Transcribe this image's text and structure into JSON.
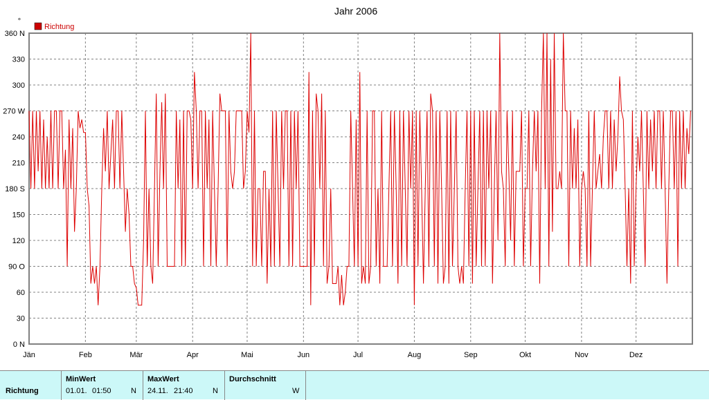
{
  "chart_data": {
    "type": "line",
    "title": "Jahr 2006",
    "unit_label": "°",
    "series": [
      {
        "name": "Richtung",
        "color": "#dd0000"
      }
    ],
    "ylim": [
      0,
      360
    ],
    "yticks": [
      {
        "value": 360,
        "label": "360 N"
      },
      {
        "value": 330,
        "label": "330"
      },
      {
        "value": 300,
        "label": "300"
      },
      {
        "value": 270,
        "label": "270 W"
      },
      {
        "value": 240,
        "label": "240"
      },
      {
        "value": 210,
        "label": "210"
      },
      {
        "value": 180,
        "label": "180 S"
      },
      {
        "value": 150,
        "label": "150"
      },
      {
        "value": 120,
        "label": "120"
      },
      {
        "value": 90,
        "label": "90  O"
      },
      {
        "value": 60,
        "label": "60"
      },
      {
        "value": 30,
        "label": "30"
      },
      {
        "value": 0,
        "label": "0   N"
      }
    ],
    "xlim": [
      0,
      365
    ],
    "xticks": [
      {
        "day": 0,
        "label": "Jän"
      },
      {
        "day": 31,
        "label": "Feb"
      },
      {
        "day": 59,
        "label": "Mär"
      },
      {
        "day": 90,
        "label": "Apr"
      },
      {
        "day": 120,
        "label": "Mai"
      },
      {
        "day": 151,
        "label": "Jun"
      },
      {
        "day": 181,
        "label": "Jul"
      },
      {
        "day": 212,
        "label": "Aug"
      },
      {
        "day": 243,
        "label": "Sep"
      },
      {
        "day": 273,
        "label": "Okt"
      },
      {
        "day": 304,
        "label": "Nov"
      },
      {
        "day": 334,
        "label": "Dez"
      }
    ],
    "grid": true,
    "legend_position": "top-left",
    "data_x_unit": "day of year",
    "data_y_unit": "degrees",
    "data": [
      [
        0,
        270
      ],
      [
        1,
        180
      ],
      [
        2,
        270
      ],
      [
        3,
        180
      ],
      [
        4,
        270
      ],
      [
        5,
        200
      ],
      [
        6,
        270
      ],
      [
        7,
        180
      ],
      [
        8,
        260
      ],
      [
        9,
        180
      ],
      [
        10,
        240
      ],
      [
        11,
        180
      ],
      [
        12,
        270
      ],
      [
        13,
        180
      ],
      [
        14,
        270
      ],
      [
        15,
        270
      ],
      [
        16,
        180
      ],
      [
        17,
        270
      ],
      [
        18,
        270
      ],
      [
        19,
        180
      ],
      [
        20,
        225
      ],
      [
        21,
        90
      ],
      [
        22,
        260
      ],
      [
        23,
        180
      ],
      [
        24,
        250
      ],
      [
        25,
        130
      ],
      [
        26,
        180
      ],
      [
        27,
        270
      ],
      [
        28,
        250
      ],
      [
        29,
        260
      ],
      [
        30,
        245
      ],
      [
        31,
        245
      ],
      [
        32,
        180
      ],
      [
        33,
        160
      ],
      [
        34,
        70
      ],
      [
        35,
        90
      ],
      [
        36,
        70
      ],
      [
        37,
        90
      ],
      [
        38,
        45
      ],
      [
        39,
        90
      ],
      [
        40,
        180
      ],
      [
        41,
        250
      ],
      [
        42,
        200
      ],
      [
        43,
        270
      ],
      [
        44,
        180
      ],
      [
        45,
        220
      ],
      [
        46,
        260
      ],
      [
        47,
        180
      ],
      [
        48,
        270
      ],
      [
        49,
        270
      ],
      [
        50,
        180
      ],
      [
        51,
        270
      ],
      [
        52,
        200
      ],
      [
        53,
        130
      ],
      [
        54,
        180
      ],
      [
        55,
        150
      ],
      [
        56,
        90
      ],
      [
        57,
        90
      ],
      [
        58,
        70
      ],
      [
        59,
        65
      ],
      [
        60,
        45
      ],
      [
        61,
        45
      ],
      [
        62,
        45
      ],
      [
        63,
        120
      ],
      [
        64,
        270
      ],
      [
        65,
        90
      ],
      [
        66,
        180
      ],
      [
        67,
        90
      ],
      [
        68,
        70
      ],
      [
        69,
        180
      ],
      [
        70,
        290
      ],
      [
        71,
        90
      ],
      [
        72,
        200
      ],
      [
        73,
        280
      ],
      [
        74,
        180
      ],
      [
        75,
        290
      ],
      [
        76,
        90
      ],
      [
        77,
        90
      ],
      [
        78,
        90
      ],
      [
        79,
        90
      ],
      [
        80,
        90
      ],
      [
        81,
        270
      ],
      [
        82,
        180
      ],
      [
        83,
        260
      ],
      [
        84,
        90
      ],
      [
        85,
        270
      ],
      [
        86,
        90
      ],
      [
        87,
        270
      ],
      [
        88,
        270
      ],
      [
        89,
        260
      ],
      [
        90,
        180
      ],
      [
        91,
        315
      ],
      [
        92,
        270
      ],
      [
        93,
        180
      ],
      [
        94,
        270
      ],
      [
        95,
        270
      ],
      [
        96,
        90
      ],
      [
        97,
        270
      ],
      [
        98,
        180
      ],
      [
        99,
        260
      ],
      [
        100,
        90
      ],
      [
        101,
        270
      ],
      [
        102,
        180
      ],
      [
        103,
        90
      ],
      [
        104,
        180
      ],
      [
        105,
        290
      ],
      [
        106,
        270
      ],
      [
        107,
        270
      ],
      [
        108,
        270
      ],
      [
        109,
        90
      ],
      [
        110,
        270
      ],
      [
        111,
        200
      ],
      [
        112,
        180
      ],
      [
        113,
        200
      ],
      [
        114,
        270
      ],
      [
        115,
        270
      ],
      [
        116,
        270
      ],
      [
        117,
        270
      ],
      [
        118,
        180
      ],
      [
        119,
        200
      ],
      [
        120,
        270
      ],
      [
        121,
        245
      ],
      [
        122,
        360
      ],
      [
        123,
        90
      ],
      [
        124,
        270
      ],
      [
        125,
        90
      ],
      [
        126,
        180
      ],
      [
        127,
        180
      ],
      [
        128,
        90
      ],
      [
        129,
        200
      ],
      [
        130,
        200
      ],
      [
        131,
        70
      ],
      [
        132,
        180
      ],
      [
        133,
        90
      ],
      [
        134,
        270
      ],
      [
        135,
        90
      ],
      [
        136,
        270
      ],
      [
        137,
        180
      ],
      [
        138,
        90
      ],
      [
        139,
        270
      ],
      [
        140,
        180
      ],
      [
        141,
        270
      ],
      [
        142,
        270
      ],
      [
        143,
        90
      ],
      [
        144,
        270
      ],
      [
        145,
        90
      ],
      [
        146,
        270
      ],
      [
        147,
        180
      ],
      [
        148,
        270
      ],
      [
        149,
        90
      ],
      [
        150,
        90
      ],
      [
        151,
        90
      ],
      [
        152,
        90
      ],
      [
        153,
        90
      ],
      [
        154,
        315
      ],
      [
        155,
        45
      ],
      [
        156,
        270
      ],
      [
        157,
        90
      ],
      [
        158,
        290
      ],
      [
        159,
        270
      ],
      [
        160,
        180
      ],
      [
        161,
        290
      ],
      [
        162,
        90
      ],
      [
        163,
        270
      ],
      [
        164,
        70
      ],
      [
        165,
        90
      ],
      [
        166,
        180
      ],
      [
        167,
        70
      ],
      [
        168,
        70
      ],
      [
        169,
        70
      ],
      [
        170,
        90
      ],
      [
        171,
        45
      ],
      [
        172,
        80
      ],
      [
        173,
        45
      ],
      [
        174,
        60
      ],
      [
        175,
        90
      ],
      [
        176,
        90
      ],
      [
        177,
        270
      ],
      [
        178,
        180
      ],
      [
        179,
        90
      ],
      [
        180,
        260
      ],
      [
        181,
        90
      ],
      [
        182,
        315
      ],
      [
        183,
        70
      ],
      [
        184,
        90
      ],
      [
        185,
        70
      ],
      [
        186,
        270
      ],
      [
        187,
        70
      ],
      [
        188,
        90
      ],
      [
        189,
        270
      ],
      [
        190,
        270
      ],
      [
        191,
        90
      ],
      [
        192,
        180
      ],
      [
        193,
        70
      ],
      [
        194,
        270
      ],
      [
        195,
        90
      ],
      [
        196,
        90
      ],
      [
        197,
        90
      ],
      [
        198,
        180
      ],
      [
        199,
        270
      ],
      [
        200,
        90
      ],
      [
        201,
        270
      ],
      [
        202,
        180
      ],
      [
        203,
        70
      ],
      [
        204,
        270
      ],
      [
        205,
        90
      ],
      [
        206,
        270
      ],
      [
        207,
        180
      ],
      [
        208,
        90
      ],
      [
        209,
        270
      ],
      [
        210,
        180
      ],
      [
        211,
        270
      ],
      [
        212,
        45
      ],
      [
        213,
        270
      ],
      [
        214,
        90
      ],
      [
        215,
        270
      ],
      [
        216,
        180
      ],
      [
        217,
        70
      ],
      [
        218,
        180
      ],
      [
        219,
        270
      ],
      [
        220,
        90
      ],
      [
        221,
        290
      ],
      [
        222,
        270
      ],
      [
        223,
        90
      ],
      [
        224,
        270
      ],
      [
        225,
        70
      ],
      [
        226,
        270
      ],
      [
        227,
        180
      ],
      [
        228,
        70
      ],
      [
        229,
        90
      ],
      [
        230,
        270
      ],
      [
        231,
        70
      ],
      [
        232,
        270
      ],
      [
        233,
        90
      ],
      [
        234,
        180
      ],
      [
        235,
        270
      ],
      [
        236,
        90
      ],
      [
        237,
        70
      ],
      [
        238,
        90
      ],
      [
        239,
        70
      ],
      [
        240,
        180
      ],
      [
        241,
        270
      ],
      [
        242,
        90
      ],
      [
        243,
        270
      ],
      [
        244,
        70
      ],
      [
        245,
        270
      ],
      [
        246,
        90
      ],
      [
        247,
        180
      ],
      [
        248,
        270
      ],
      [
        249,
        90
      ],
      [
        250,
        270
      ],
      [
        251,
        90
      ],
      [
        252,
        270
      ],
      [
        253,
        180
      ],
      [
        254,
        270
      ],
      [
        255,
        70
      ],
      [
        256,
        180
      ],
      [
        257,
        270
      ],
      [
        258,
        120
      ],
      [
        259,
        360
      ],
      [
        260,
        200
      ],
      [
        261,
        180
      ],
      [
        262,
        90
      ],
      [
        263,
        270
      ],
      [
        264,
        200
      ],
      [
        265,
        120
      ],
      [
        266,
        270
      ],
      [
        267,
        90
      ],
      [
        268,
        200
      ],
      [
        269,
        200
      ],
      [
        270,
        200
      ],
      [
        271,
        270
      ],
      [
        272,
        90
      ],
      [
        273,
        180
      ],
      [
        274,
        180
      ],
      [
        275,
        270
      ],
      [
        276,
        90
      ],
      [
        277,
        200
      ],
      [
        278,
        270
      ],
      [
        279,
        200
      ],
      [
        280,
        270
      ],
      [
        281,
        70
      ],
      [
        282,
        270
      ],
      [
        283,
        360
      ],
      [
        284,
        180
      ],
      [
        285,
        360
      ],
      [
        286,
        90
      ],
      [
        287,
        330
      ],
      [
        288,
        130
      ],
      [
        289,
        360
      ],
      [
        290,
        180
      ],
      [
        291,
        180
      ],
      [
        292,
        200
      ],
      [
        293,
        180
      ],
      [
        294,
        360
      ],
      [
        295,
        270
      ],
      [
        296,
        270
      ],
      [
        297,
        90
      ],
      [
        298,
        270
      ],
      [
        299,
        180
      ],
      [
        300,
        250
      ],
      [
        301,
        180
      ],
      [
        302,
        260
      ],
      [
        303,
        90
      ],
      [
        304,
        180
      ],
      [
        305,
        200
      ],
      [
        306,
        180
      ],
      [
        307,
        90
      ],
      [
        308,
        270
      ],
      [
        309,
        90
      ],
      [
        310,
        180
      ],
      [
        311,
        270
      ],
      [
        312,
        180
      ],
      [
        313,
        200
      ],
      [
        314,
        220
      ],
      [
        315,
        180
      ],
      [
        316,
        240
      ],
      [
        317,
        270
      ],
      [
        318,
        270
      ],
      [
        319,
        180
      ],
      [
        320,
        270
      ],
      [
        321,
        180
      ],
      [
        322,
        260
      ],
      [
        323,
        200
      ],
      [
        324,
        240
      ],
      [
        325,
        310
      ],
      [
        326,
        270
      ],
      [
        327,
        260
      ],
      [
        328,
        180
      ],
      [
        329,
        90
      ],
      [
        330,
        180
      ],
      [
        331,
        70
      ],
      [
        332,
        270
      ],
      [
        333,
        90
      ],
      [
        334,
        180
      ],
      [
        335,
        240
      ],
      [
        336,
        200
      ],
      [
        337,
        270
      ],
      [
        338,
        180
      ],
      [
        339,
        90
      ],
      [
        340,
        270
      ],
      [
        341,
        180
      ],
      [
        342,
        260
      ],
      [
        343,
        200
      ],
      [
        344,
        270
      ],
      [
        345,
        180
      ],
      [
        346,
        270
      ],
      [
        347,
        270
      ],
      [
        348,
        180
      ],
      [
        349,
        270
      ],
      [
        350,
        180
      ],
      [
        351,
        70
      ],
      [
        352,
        180
      ],
      [
        353,
        270
      ],
      [
        354,
        270
      ],
      [
        355,
        180
      ],
      [
        356,
        270
      ],
      [
        357,
        90
      ],
      [
        358,
        270
      ],
      [
        359,
        180
      ],
      [
        360,
        270
      ],
      [
        361,
        180
      ],
      [
        362,
        250
      ],
      [
        363,
        220
      ],
      [
        364,
        270
      ]
    ]
  },
  "stats": {
    "row_label": "Richtung",
    "min": {
      "header": "MinWert",
      "date": "01.01.",
      "time": "01:50",
      "dir": "N"
    },
    "max": {
      "header": "MaxWert",
      "date": "24.11.",
      "time": "21:40",
      "dir": "N"
    },
    "avg": {
      "header": "Durchschnitt",
      "dir": "W"
    }
  }
}
